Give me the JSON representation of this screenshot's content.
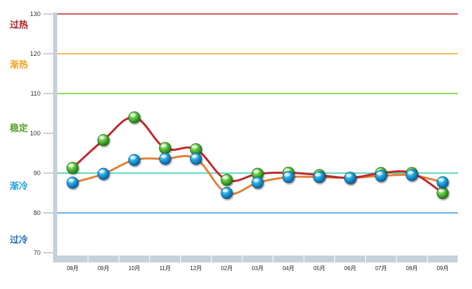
{
  "chart_data": {
    "type": "line",
    "title": "",
    "xlabel": "",
    "ylabel": "",
    "categories": [
      "08月",
      "09月",
      "10月",
      "11月",
      "12月",
      "02月",
      "03月",
      "04月",
      "05月",
      "06月",
      "07月",
      "08月",
      "09月"
    ],
    "ylim": [
      70,
      130
    ],
    "yticks": [
      70,
      80,
      90,
      100,
      110,
      120,
      130
    ],
    "grid": false,
    "legend": "none",
    "series": [
      {
        "values": [
          91.3,
          98.3,
          104.0,
          96.3,
          96.0,
          88.3,
          89.8,
          90.1,
          89.5,
          88.8,
          90.0,
          90.0,
          85.0
        ],
        "line_color": "#c0282d",
        "marker": "green-ball"
      },
      {
        "values": [
          87.6,
          89.8,
          93.3,
          93.6,
          93.6,
          85.0,
          87.6,
          89.0,
          89.0,
          88.8,
          89.3,
          89.5,
          87.7
        ],
        "line_color": "#e0823a",
        "marker": "blue-ball"
      }
    ],
    "reference_lines": [
      {
        "value": 130,
        "color": "#c0282d"
      },
      {
        "value": 120,
        "color": "#f5a623"
      },
      {
        "value": 110,
        "color": "#66cc33"
      },
      {
        "value": 90,
        "color": "#33ccaa"
      },
      {
        "value": 80,
        "color": "#3399dd"
      }
    ],
    "zones": [
      {
        "label": "过热",
        "level": 127,
        "color": "#b01c1c"
      },
      {
        "label": "渐热",
        "level": 117,
        "color": "#f2a21a"
      },
      {
        "label": "稳定",
        "level": 101,
        "color": "#5aa02c"
      },
      {
        "label": "渐冷",
        "level": 86.5,
        "color": "#1fa0d8"
      },
      {
        "label": "过冷",
        "level": 73,
        "color": "#1f6fb8"
      }
    ]
  }
}
